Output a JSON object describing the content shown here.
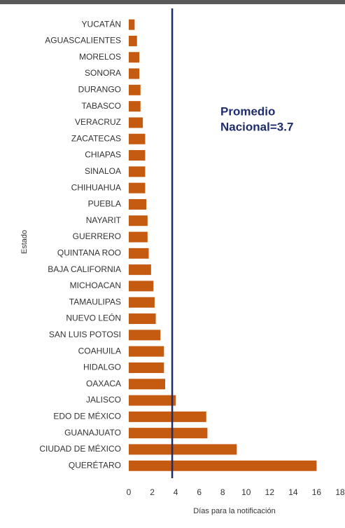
{
  "chart_data": {
    "type": "hbar",
    "categories": [
      "YUCATÁN",
      "AGUASCALIENTES",
      "MORELOS",
      "SONORA",
      "DURANGO",
      "TABASCO",
      "VERACRUZ",
      "ZACATECAS",
      "CHIAPAS",
      "SINALOA",
      "CHIHUAHUA",
      "PUEBLA",
      "NAYARIT",
      "GUERRERO",
      "QUINTANA ROO",
      "BAJA CALIFORNIA",
      "MICHOACAN",
      "TAMAULIPAS",
      "NUEVO LEÓN",
      "SAN  LUIS POTOSI",
      "COAHUILA",
      "HIDALGO",
      "OAXACA",
      "JALISCO",
      "EDO DE MÉXICO",
      "GUANAJUATO",
      "CIUDAD DE MÉXICO",
      "QUERÉTARO"
    ],
    "values": [
      0.5,
      0.7,
      0.9,
      0.9,
      1.0,
      1.0,
      1.2,
      1.4,
      1.4,
      1.4,
      1.4,
      1.5,
      1.6,
      1.6,
      1.7,
      1.9,
      2.1,
      2.2,
      2.3,
      2.7,
      3.0,
      3.0,
      3.1,
      4.0,
      6.6,
      6.7,
      9.2,
      16.0
    ],
    "color": "#c55a11",
    "xlim": [
      0,
      18
    ],
    "xticks": [
      0,
      2,
      4,
      6,
      8,
      10,
      12,
      14,
      16,
      18
    ],
    "xlabel": "Días para la notificación",
    "ylabel": "Estado",
    "reference_line": 3.7,
    "reference_color": "#1f2d6b",
    "annotation": [
      "Promedio",
      "Nacional=3.7"
    ]
  }
}
